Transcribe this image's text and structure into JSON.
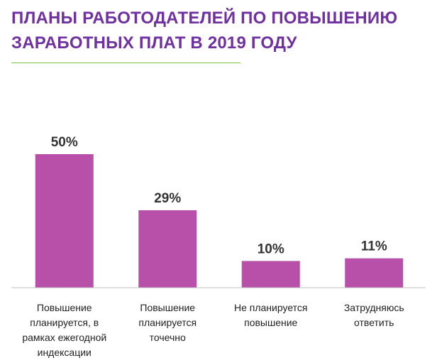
{
  "title": {
    "line1": "ПЛАНЫ РАБОТОДАТЕЛЕЙ  ПО ПОВЫШЕНИЮ",
    "line2": "ЗАРАБОТНЫХ  ПЛАТ В 2019 ГОДУ"
  },
  "colors": {
    "title": "#7030a0",
    "rule": "#7ac143",
    "bar": "#b84fa8",
    "axis": "#bfbfbf"
  },
  "chart_data": {
    "type": "bar",
    "categories": [
      [
        "Повышение",
        "планируется, в",
        "рамках ежегодной",
        "индексации"
      ],
      [
        "Повышение",
        "планируется",
        "точечно"
      ],
      [
        "Не планируется",
        "повышение"
      ],
      [
        "Затрудняюсь",
        "ответить"
      ]
    ],
    "values": [
      50,
      29,
      10,
      11
    ],
    "value_labels": [
      "50%",
      "29%",
      "10%",
      "11%"
    ],
    "unit": "%",
    "ylim": [
      0,
      50
    ],
    "grid": false,
    "legend": "none"
  }
}
